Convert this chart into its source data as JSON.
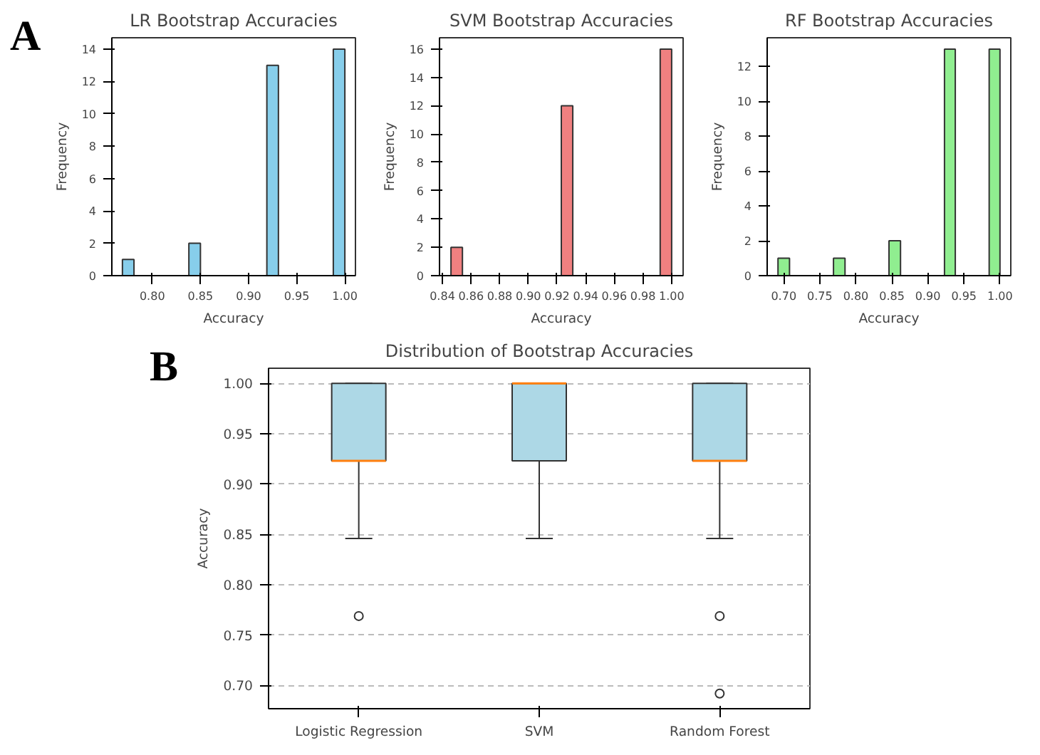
{
  "chart_data": [
    {
      "type": "histogram",
      "title": "LR Bootstrap Accuracies",
      "xlabel": "Accuracy",
      "ylabel": "Frequency",
      "annotations": [
        "A"
      ],
      "color": "#87ceeb",
      "bins": [
        0.769,
        0.781,
        0.838,
        0.85,
        0.919,
        0.931,
        0.988,
        1.0
      ],
      "values": [
        1,
        0,
        2,
        0,
        13,
        0,
        14
      ],
      "xlim": [
        0.758,
        1.011
      ],
      "xticks": [
        {
          "value": 0.8,
          "label": "0.80"
        },
        {
          "value": 0.85,
          "label": "0.85"
        },
        {
          "value": 0.9,
          "label": "0.90"
        },
        {
          "value": 0.95,
          "label": "0.95"
        },
        {
          "value": 1.0,
          "label": "1.00"
        }
      ],
      "ylim": [
        0,
        14.7
      ],
      "yticks": [
        0,
        2,
        4,
        6,
        8,
        10,
        12,
        14
      ]
    },
    {
      "type": "histogram",
      "title": "SVM Bootstrap Accuracies",
      "xlabel": "Accuracy",
      "ylabel": "Frequency",
      "color": "#f08080",
      "bins": [
        0.846,
        0.854,
        0.923,
        0.931,
        0.992,
        1.0
      ],
      "values": [
        2,
        0,
        12,
        0,
        16
      ],
      "xlim": [
        0.838,
        1.008
      ],
      "xticks": [
        {
          "value": 0.84,
          "label": "0.84"
        },
        {
          "value": 0.86,
          "label": "0.86"
        },
        {
          "value": 0.88,
          "label": "0.88"
        },
        {
          "value": 0.9,
          "label": "0.90"
        },
        {
          "value": 0.92,
          "label": "0.92"
        },
        {
          "value": 0.94,
          "label": "0.94"
        },
        {
          "value": 0.96,
          "label": "0.96"
        },
        {
          "value": 0.98,
          "label": "0.98"
        },
        {
          "value": 1.0,
          "label": "1.00"
        }
      ],
      "ylim": [
        0,
        16.8
      ],
      "yticks": [
        0,
        2,
        4,
        6,
        8,
        10,
        12,
        14,
        16
      ]
    },
    {
      "type": "histogram",
      "title": "RF Bootstrap Accuracies",
      "xlabel": "Accuracy",
      "ylabel": "Frequency",
      "color": "#90ee90",
      "bins": [
        0.692,
        0.708,
        0.769,
        0.785,
        0.846,
        0.862,
        0.923,
        0.938,
        0.985,
        1.0
      ],
      "values": [
        1,
        0,
        1,
        0,
        2,
        0,
        13,
        0,
        13
      ],
      "xlim": [
        0.677,
        1.015
      ],
      "xticks": [
        {
          "value": 0.7,
          "label": "0.70"
        },
        {
          "value": 0.75,
          "label": "0.75"
        },
        {
          "value": 0.8,
          "label": "0.80"
        },
        {
          "value": 0.85,
          "label": "0.85"
        },
        {
          "value": 0.9,
          "label": "0.90"
        },
        {
          "value": 0.95,
          "label": "0.95"
        },
        {
          "value": 1.0,
          "label": "1.00"
        }
      ],
      "ylim": [
        0,
        13.65
      ],
      "yticks": [
        0,
        2,
        4,
        6,
        8,
        10,
        12
      ]
    },
    {
      "type": "box",
      "title": "Distribution of Bootstrap Accuracies",
      "ylabel": "Accuracy",
      "annotations": [
        "B"
      ],
      "color": "#add8e6",
      "grid": "y",
      "categories": [
        "Logistic Regression",
        "SVM",
        "Random Forest"
      ],
      "boxes": [
        {
          "low": 0.846,
          "q1": 0.923,
          "median": 0.923,
          "q3": 1.0,
          "high": 1.0,
          "outliers": [
            0.769
          ]
        },
        {
          "low": 0.846,
          "q1": 0.923,
          "median": 1.0,
          "q3": 1.0,
          "high": 1.0
        },
        {
          "low": 0.846,
          "q1": 0.923,
          "median": 0.923,
          "q3": 1.0,
          "high": 1.0,
          "outliers": [
            0.769,
            0.692
          ]
        }
      ],
      "ylim": [
        0.677,
        1.015
      ],
      "yticks": [
        {
          "value": 0.7,
          "label": "0.70"
        },
        {
          "value": 0.75,
          "label": "0.75"
        },
        {
          "value": 0.8,
          "label": "0.80"
        },
        {
          "value": 0.85,
          "label": "0.85"
        },
        {
          "value": 0.9,
          "label": "0.90"
        },
        {
          "value": 0.95,
          "label": "0.95"
        },
        {
          "value": 1.0,
          "label": "1.00"
        }
      ]
    }
  ]
}
